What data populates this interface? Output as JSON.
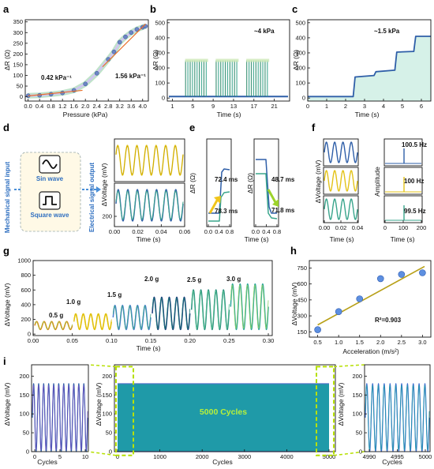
{
  "panels": {
    "a": {
      "label": "a",
      "xlabel": "Pressure (kPa)",
      "ylabel": "ΔR (Ω)",
      "sens_low": "0.42 kPa⁻¹",
      "sens_high": "1.56 kPa⁻¹"
    },
    "b": {
      "label": "b",
      "xlabel": "Time (s)",
      "ylabel": "ΔR (Ω)",
      "annotation": "~4 kPa"
    },
    "c": {
      "label": "c",
      "xlabel": "Time (s)",
      "ylabel": "ΔR (Ω)",
      "annotation": "~1.5 kPa"
    },
    "d": {
      "label": "d",
      "side_input": "Mechanical signal input",
      "side_output": "Electrical signal output",
      "sin_label": "Sin wave",
      "square_label": "Square wave",
      "xlabel": "Time (s)",
      "ylabel": "ΔVoltage (mV)"
    },
    "e": {
      "label": "e",
      "xlabel": "Time (s)",
      "ylabel": "ΔR (Ω)",
      "t1": "72.4 ms",
      "t2": "78.3 ms",
      "t3": "48.7 ms",
      "t4": "71.8 ms"
    },
    "f": {
      "label": "f",
      "xlabel": "Time (s)",
      "ylabel": "ΔVoltage (mV)",
      "ylabel2": "Amplitude",
      "freq1": "100.5 Hz",
      "freq2": "100 Hz",
      "freq3": "99.5 Hz"
    },
    "g": {
      "label": "g",
      "xlabel": "Time (s)",
      "ylabel": "ΔVoltage (mV)",
      "acc": [
        "0.5 g",
        "1.0 g",
        "1.5 g",
        "2.0 g",
        "2.5 g",
        "3.0 g"
      ]
    },
    "h": {
      "label": "h",
      "xlabel": "Acceleration (m/s²)",
      "ylabel": "ΔVoltage (mV)",
      "r2": "R²=0.903"
    },
    "i": {
      "label": "i",
      "xlabel": "Cycles",
      "ylabel": "ΔVoltage (mV)",
      "center_text": "5000 Cycles"
    }
  },
  "colors": {
    "blue": "#2f5fa8",
    "green": "#3aa58c",
    "yellow": "#e3c319",
    "teal": "#1f9aa8",
    "lime": "#c8e000",
    "navy": "#173d7a",
    "orange": "#e37b14"
  },
  "chart_data": [
    {
      "id": "a",
      "type": "scatter",
      "x": [
        0,
        0.4,
        0.8,
        1.2,
        1.6,
        2.0,
        2.4,
        2.8,
        3.0,
        3.2,
        3.4,
        3.6,
        3.8,
        4.0,
        4.1
      ],
      "y": [
        5,
        7,
        12,
        18,
        30,
        60,
        110,
        175,
        210,
        255,
        280,
        300,
        315,
        325,
        330
      ],
      "xticks": [
        "0.0",
        "0.4",
        "0.8",
        "1.2",
        "1.6",
        "2.0",
        "2.4",
        "2.8",
        "3.2",
        "3.6",
        "4.0"
      ],
      "yticks": [
        "0",
        "50",
        "100",
        "150",
        "200",
        "250",
        "300",
        "350"
      ],
      "xlim": [
        -0.1,
        4.2
      ],
      "ylim": [
        -20,
        360
      ]
    },
    {
      "id": "b",
      "type": "line",
      "baseline": 10,
      "peak": 250,
      "bursts_start": [
        3.5,
        9.5,
        15.5
      ],
      "burst_length": 4.5,
      "xticks": [
        "1",
        "5",
        "9",
        "13",
        "17",
        "21"
      ],
      "yticks": [
        "0",
        "100",
        "200",
        "300",
        "400",
        "500"
      ],
      "xlim": [
        0,
        24
      ],
      "ylim": [
        -20,
        520
      ]
    },
    {
      "id": "c",
      "type": "line",
      "x": [
        0,
        2.4,
        2.5,
        3.5,
        3.6,
        4.6,
        4.7,
        5.6,
        5.7,
        6.5
      ],
      "y": [
        10,
        10,
        140,
        150,
        175,
        185,
        305,
        310,
        410,
        410
      ],
      "xticks": [
        "0",
        "1",
        "2",
        "3",
        "4",
        "5",
        "6"
      ],
      "yticks": [
        "0",
        "100",
        "200",
        "300",
        "400",
        "500"
      ],
      "xlim": [
        0,
        6.5
      ],
      "ylim": [
        -20,
        520
      ]
    },
    {
      "id": "d",
      "type": "line",
      "xticks": [
        "0.00",
        "0.02",
        "0.04",
        "0.06"
      ],
      "yticks": [
        "200"
      ]
    },
    {
      "id": "e",
      "type": "line",
      "xticks_left": [
        "0.0",
        "0.4",
        "0.8"
      ],
      "xticks_right": [
        "0.0",
        "0.4",
        "0.8"
      ]
    },
    {
      "id": "f",
      "type": "line",
      "xticks_left": [
        "0.00",
        "0.02",
        "0.04"
      ],
      "xticks_right": [
        "0",
        "100",
        "200"
      ]
    },
    {
      "id": "g",
      "type": "line",
      "amplitudes": [
        110,
        215,
        330,
        440,
        540,
        620
      ],
      "xticks": [
        "0.00",
        "0.05",
        "0.10",
        "0.15",
        "0.20",
        "0.25",
        "0.30"
      ],
      "yticks": [
        "0",
        "200",
        "400",
        "600",
        "800",
        "1000"
      ],
      "xlim": [
        0,
        0.305
      ],
      "ylim": [
        -20,
        1000
      ]
    },
    {
      "id": "h",
      "type": "scatter",
      "x": [
        0.5,
        1.0,
        1.5,
        2.0,
        2.5,
        3.0
      ],
      "y": [
        170,
        340,
        460,
        650,
        690,
        705
      ],
      "xticks": [
        "0.5",
        "1.0",
        "1.5",
        "2.0",
        "2.5",
        "3.0"
      ],
      "yticks": [
        "150",
        "300",
        "450",
        "600",
        "750"
      ],
      "xlim": [
        0.3,
        3.2
      ],
      "ylim": [
        100,
        820
      ]
    },
    {
      "id": "i",
      "type": "line",
      "xticks_left": [
        "0",
        "5",
        "10"
      ],
      "xticks_center": [
        "0",
        "1000",
        "2000",
        "3000",
        "4000",
        "5000"
      ],
      "xticks_right": [
        "4990",
        "4995",
        "5000"
      ],
      "yticks": [
        "0",
        "50",
        "100",
        "150",
        "200"
      ],
      "ylim": [
        0,
        230
      ],
      "amplitude": 180
    }
  ]
}
